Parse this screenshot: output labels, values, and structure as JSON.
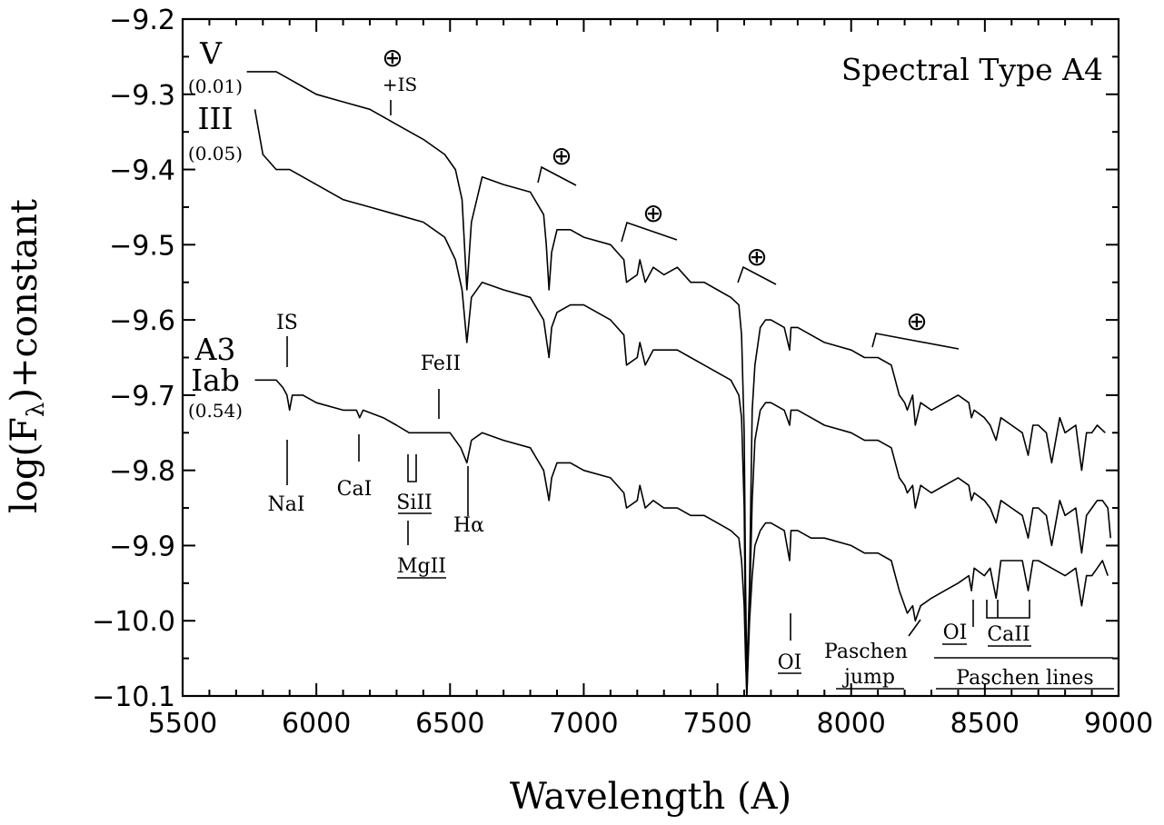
{
  "chart_data": {
    "type": "line",
    "title": "Spectral Type A4",
    "xlabel": "Wavelength (A)",
    "ylabel": "log(Fλ)+constant",
    "ylabel_main": "log(F",
    "ylabel_sub": "λ",
    "ylabel_tail": ")+constant",
    "xlim": [
      5500,
      9000
    ],
    "ylim": [
      -10.1,
      -9.2
    ],
    "x_ticks": [
      5500,
      6000,
      6500,
      7000,
      7500,
      8000,
      8500,
      9000
    ],
    "x_tick_labels": [
      "5500",
      "6000",
      "6500",
      "7000",
      "7500",
      "8000",
      "8500",
      "9000"
    ],
    "y_ticks": [
      -9.2,
      -9.3,
      -9.4,
      -9.5,
      -9.6,
      -9.7,
      -9.8,
      -9.9,
      -10.0,
      -10.1
    ],
    "y_tick_labels": [
      "−9.2",
      "−9.3",
      "−9.4",
      "−9.5",
      "−9.6",
      "−9.7",
      "−9.8",
      "−9.9",
      "−10.0",
      "−10.1"
    ],
    "grid": false,
    "series": [
      {
        "name": "V",
        "extinction": "(0.01)",
        "x": [
          5740,
          5800,
          5850,
          5900,
          5950,
          6000,
          6100,
          6200,
          6300,
          6400,
          6480,
          6520,
          6545,
          6563,
          6580,
          6620,
          6700,
          6800,
          6850,
          6860,
          6870,
          6880,
          6900,
          6950,
          7000,
          7100,
          7150,
          7160,
          7200,
          7210,
          7230,
          7260,
          7300,
          7350,
          7400,
          7450,
          7500,
          7550,
          7580,
          7590,
          7600,
          7605,
          7610,
          7620,
          7630,
          7640,
          7660,
          7680,
          7700,
          7750,
          7770,
          7775,
          7780,
          7800,
          7850,
          7900,
          8000,
          8050,
          8100,
          8150,
          8180,
          8200,
          8210,
          8230,
          8240,
          8260,
          8300,
          8350,
          8400,
          8440,
          8450,
          8460,
          8498,
          8520,
          8542,
          8560,
          8600,
          8640,
          8662,
          8680,
          8700,
          8730,
          8750,
          8780,
          8800,
          8840,
          8862,
          8880,
          8900,
          8920,
          8950
        ],
        "y": [
          -9.27,
          -9.27,
          -9.27,
          -9.28,
          -9.29,
          -9.3,
          -9.31,
          -9.32,
          -9.34,
          -9.36,
          -9.38,
          -9.4,
          -9.44,
          -9.56,
          -9.47,
          -9.41,
          -9.42,
          -9.43,
          -9.46,
          -9.5,
          -9.56,
          -9.51,
          -9.48,
          -9.48,
          -9.49,
          -9.5,
          -9.52,
          -9.55,
          -9.54,
          -9.52,
          -9.55,
          -9.53,
          -9.54,
          -9.53,
          -9.55,
          -9.55,
          -9.56,
          -9.57,
          -9.58,
          -9.62,
          -9.75,
          -9.95,
          -10.08,
          -9.95,
          -9.72,
          -9.66,
          -9.61,
          -9.6,
          -9.6,
          -9.61,
          -9.64,
          -9.61,
          -9.61,
          -9.61,
          -9.62,
          -9.63,
          -9.64,
          -9.65,
          -9.65,
          -9.66,
          -9.7,
          -9.71,
          -9.72,
          -9.7,
          -9.74,
          -9.71,
          -9.72,
          -9.71,
          -9.7,
          -9.71,
          -9.73,
          -9.72,
          -9.73,
          -9.74,
          -9.76,
          -9.73,
          -9.74,
          -9.75,
          -9.78,
          -9.74,
          -9.74,
          -9.75,
          -9.79,
          -9.73,
          -9.75,
          -9.74,
          -9.8,
          -9.75,
          -9.75,
          -9.74,
          -9.75
        ]
      },
      {
        "name": "III",
        "extinction": "(0.05)",
        "x": [
          5770,
          5800,
          5850,
          5890,
          5900,
          5950,
          6000,
          6100,
          6200,
          6300,
          6400,
          6480,
          6520,
          6545,
          6563,
          6580,
          6620,
          6700,
          6800,
          6850,
          6870,
          6880,
          6900,
          6950,
          7000,
          7100,
          7150,
          7160,
          7200,
          7210,
          7230,
          7260,
          7300,
          7350,
          7400,
          7450,
          7500,
          7550,
          7580,
          7590,
          7600,
          7605,
          7610,
          7620,
          7630,
          7640,
          7660,
          7680,
          7700,
          7750,
          7770,
          7775,
          7780,
          7800,
          7850,
          7900,
          8000,
          8050,
          8100,
          8150,
          8180,
          8200,
          8210,
          8230,
          8240,
          8260,
          8300,
          8350,
          8400,
          8440,
          8450,
          8460,
          8498,
          8520,
          8542,
          8560,
          8600,
          8640,
          8662,
          8680,
          8700,
          8730,
          8750,
          8780,
          8800,
          8840,
          8862,
          8880,
          8900,
          8920,
          8940,
          8960,
          8970
        ],
        "y": [
          -9.32,
          -9.38,
          -9.4,
          -9.4,
          -9.4,
          -9.41,
          -9.42,
          -9.44,
          -9.45,
          -9.46,
          -9.47,
          -9.49,
          -9.52,
          -9.56,
          -9.63,
          -9.57,
          -9.55,
          -9.56,
          -9.57,
          -9.6,
          -9.65,
          -9.61,
          -9.59,
          -9.58,
          -9.58,
          -9.6,
          -9.62,
          -9.66,
          -9.65,
          -9.63,
          -9.66,
          -9.64,
          -9.64,
          -9.64,
          -9.65,
          -9.66,
          -9.67,
          -9.68,
          -9.7,
          -9.73,
          -9.85,
          -10.03,
          -10.1,
          -9.98,
          -9.84,
          -9.76,
          -9.72,
          -9.71,
          -9.71,
          -9.72,
          -9.74,
          -9.72,
          -9.72,
          -9.72,
          -9.73,
          -9.74,
          -9.75,
          -9.76,
          -9.76,
          -9.77,
          -9.81,
          -9.82,
          -9.83,
          -9.82,
          -9.85,
          -9.82,
          -9.83,
          -9.82,
          -9.81,
          -9.82,
          -9.84,
          -9.83,
          -9.84,
          -9.85,
          -9.87,
          -9.84,
          -9.85,
          -9.86,
          -9.89,
          -9.85,
          -9.85,
          -9.86,
          -9.9,
          -9.84,
          -9.86,
          -9.85,
          -9.91,
          -9.86,
          -9.85,
          -9.84,
          -9.84,
          -9.85,
          -9.89
        ]
      },
      {
        "name": "A3 Iab",
        "extinction": "(0.54)",
        "x": [
          5770,
          5800,
          5850,
          5875,
          5890,
          5900,
          5910,
          5950,
          6000,
          6100,
          6150,
          6162,
          6175,
          6250,
          6300,
          6347,
          6371,
          6400,
          6450,
          6500,
          6540,
          6563,
          6580,
          6620,
          6700,
          6800,
          6850,
          6870,
          6880,
          6900,
          6950,
          7000,
          7100,
          7150,
          7160,
          7200,
          7210,
          7230,
          7260,
          7300,
          7350,
          7400,
          7450,
          7500,
          7550,
          7580,
          7590,
          7600,
          7605,
          7610,
          7620,
          7630,
          7640,
          7660,
          7680,
          7700,
          7750,
          7770,
          7775,
          7780,
          7800,
          7850,
          7900,
          8000,
          8050,
          8100,
          8150,
          8180,
          8200,
          8210,
          8230,
          8240,
          8260,
          8300,
          8350,
          8400,
          8440,
          8450,
          8460,
          8498,
          8520,
          8542,
          8560,
          8600,
          8640,
          8662,
          8680,
          8700,
          8750,
          8800,
          8840,
          8862,
          8880,
          8900,
          8920,
          8940,
          8960
        ],
        "y": [
          -9.68,
          -9.68,
          -9.68,
          -9.69,
          -9.7,
          -9.72,
          -9.7,
          -9.7,
          -9.71,
          -9.72,
          -9.72,
          -9.73,
          -9.72,
          -9.73,
          -9.74,
          -9.75,
          -9.75,
          -9.75,
          -9.75,
          -9.75,
          -9.77,
          -9.79,
          -9.76,
          -9.75,
          -9.76,
          -9.77,
          -9.8,
          -9.84,
          -9.81,
          -9.79,
          -9.79,
          -9.8,
          -9.81,
          -9.83,
          -9.85,
          -9.84,
          -9.82,
          -9.85,
          -9.84,
          -9.85,
          -9.85,
          -9.86,
          -9.86,
          -9.87,
          -9.88,
          -9.89,
          -9.92,
          -9.98,
          -10.05,
          -10.1,
          -10.0,
          -9.94,
          -9.9,
          -9.88,
          -9.87,
          -9.87,
          -9.88,
          -9.92,
          -9.88,
          -9.88,
          -9.88,
          -9.89,
          -9.89,
          -9.9,
          -9.91,
          -9.91,
          -9.92,
          -9.96,
          -9.98,
          -9.99,
          -9.98,
          -10.0,
          -9.98,
          -9.97,
          -9.96,
          -9.95,
          -9.94,
          -9.96,
          -9.93,
          -9.94,
          -9.93,
          -9.97,
          -9.92,
          -9.92,
          -9.92,
          -9.96,
          -9.92,
          -9.92,
          -9.93,
          -9.94,
          -9.93,
          -9.98,
          -9.94,
          -9.94,
          -9.93,
          -9.92,
          -9.94
        ]
      }
    ],
    "title_annotation": "Spectral Type A4",
    "annotations": {
      "earth_symbol": "⊕",
      "is_plus": "+IS",
      "is": "IS",
      "nai": "NaI",
      "cai": "CaI",
      "siii": "SiII",
      "mgii": "MgII",
      "feii": "FeII",
      "halpha": "Hα",
      "oi_left": "OI",
      "paschen": "Paschen",
      "jump": "jump",
      "oi_right": "OI",
      "caii": "CaII",
      "paschen_lines": "Paschen lines"
    }
  }
}
